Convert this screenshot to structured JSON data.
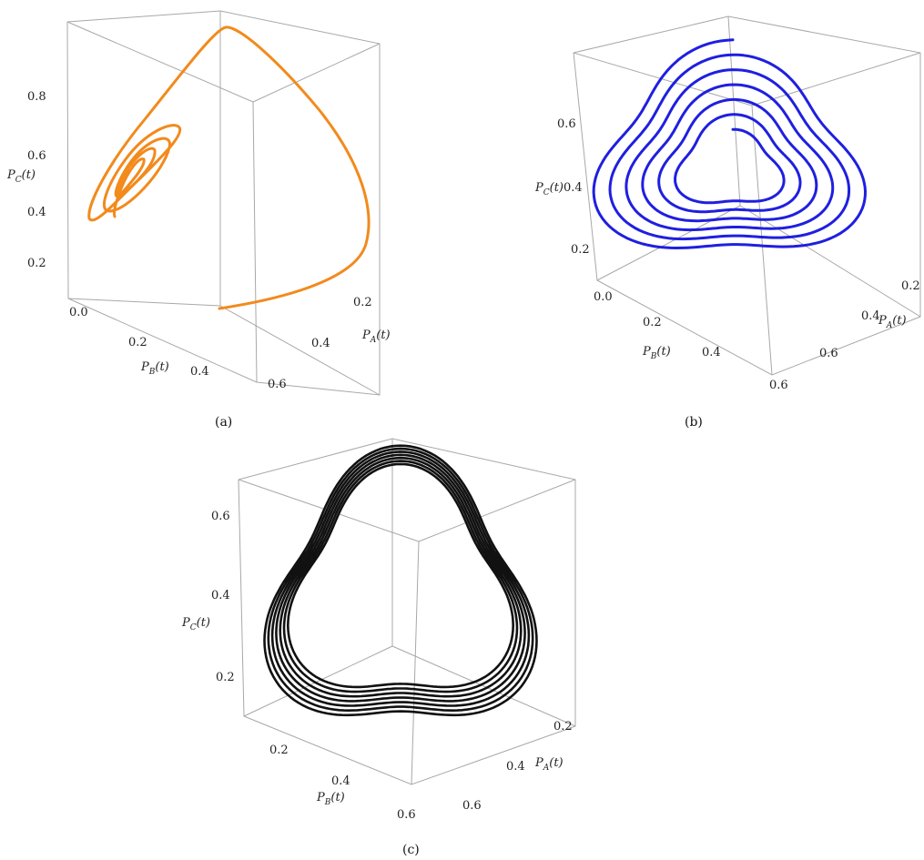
{
  "chart_data": [
    {
      "type": "line",
      "subtitle": "(a)",
      "color": "#f28a1c",
      "zlabel": "P",
      "zlabel_sub": "C",
      "zlabel_suffix": "(t)",
      "xlabel": "P",
      "xlabel_sub": "B",
      "xlabel_suffix": "(t)",
      "ylabel": "P",
      "ylabel_sub": "A",
      "ylabel_suffix": "(t)",
      "z_ticks": [
        "0.8",
        "0.6",
        "0.4",
        "0.2"
      ],
      "x_ticks": [
        "0.0",
        "0.2",
        "0.4"
      ],
      "y_ticks": [
        "0.2",
        "0.4",
        "0.6"
      ],
      "trajectory": {
        "kind": "spiral-in",
        "start": {
          "P_A": 0.45,
          "P_B": 0.05,
          "P_C": 0.15
        },
        "converges_to": {
          "P_A": 0.1,
          "P_B": 0.25,
          "P_C": 0.45
        }
      }
    },
    {
      "type": "line",
      "subtitle": "(b)",
      "color": "#1f1fe0",
      "zlabel": "P",
      "zlabel_sub": "C",
      "zlabel_suffix": "(t)",
      "xlabel": "P",
      "xlabel_sub": "B",
      "xlabel_suffix": "(t)",
      "ylabel": "P",
      "ylabel_sub": "A",
      "ylabel_suffix": "(t)",
      "z_ticks": [
        "0.6",
        "0.4",
        "0.2"
      ],
      "x_ticks": [
        "0.0",
        "0.2",
        "0.4",
        "0.6"
      ],
      "y_ticks": [
        "0.2",
        "0.4",
        "0.6"
      ],
      "trajectory": {
        "kind": "spiral-out",
        "loops": 6
      }
    },
    {
      "type": "line",
      "subtitle": "(c)",
      "color": "#111111",
      "zlabel": "P",
      "zlabel_sub": "C",
      "zlabel_suffix": "(t)",
      "xlabel": "P",
      "xlabel_sub": "B",
      "xlabel_suffix": "(t)",
      "ylabel": "P",
      "ylabel_sub": "A",
      "ylabel_suffix": "(t)",
      "z_ticks": [
        "0.6",
        "0.4",
        "0.2"
      ],
      "x_ticks": [
        "0.2",
        "0.4",
        "0.6"
      ],
      "y_ticks": [
        "0.2",
        "0.4",
        "0.6"
      ],
      "trajectory": {
        "kind": "limit-cycle",
        "loops": 7
      }
    }
  ]
}
